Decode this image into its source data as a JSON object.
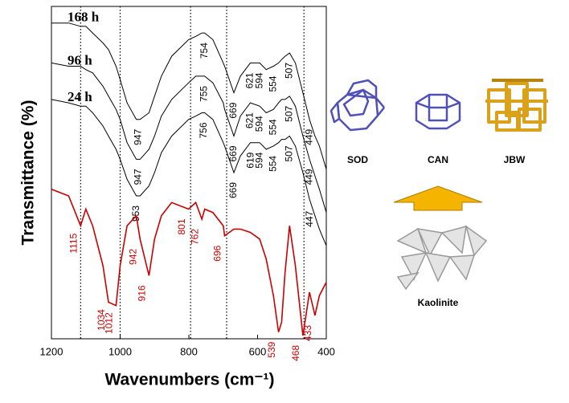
{
  "chart_data": {
    "type": "line",
    "x_label": "Wavenumbers (cm⁻¹)",
    "y_label": "Transmittance (%)",
    "xlim": [
      1200,
      400
    ],
    "xticks": [
      1200,
      1000,
      800,
      600,
      400
    ],
    "ylim": [
      0,
      100
    ],
    "reference_lines": [
      1115,
      1000,
      795,
      690,
      465
    ],
    "x": [
      1200,
      1150,
      1115,
      1100,
      1080,
      1050,
      1034,
      1012,
      1000,
      980,
      953,
      942,
      916,
      900,
      880,
      850,
      801,
      780,
      762,
      754,
      730,
      700,
      696,
      669,
      650,
      621,
      594,
      575,
      554,
      539,
      530,
      520,
      507,
      490,
      468,
      449,
      433,
      420,
      400
    ],
    "series": [
      {
        "name": "168 h",
        "color": "#000000",
        "values": [
          95,
          95,
          94,
          94,
          92,
          89,
          87,
          82,
          78,
          71,
          66,
          66,
          68,
          73,
          79,
          85,
          90,
          91,
          92,
          92,
          90,
          83,
          82,
          74,
          79,
          83,
          83,
          81,
          82,
          83,
          84,
          85,
          86,
          83,
          74,
          66,
          61,
          58,
          51
        ],
        "peaks": [
          947,
          754,
          669,
          621,
          594,
          554,
          507,
          449
        ]
      },
      {
        "name": "96 h",
        "color": "#000000",
        "values": [
          83,
          82,
          82,
          81,
          80,
          76,
          73,
          69,
          66,
          59,
          54,
          54,
          57,
          61,
          67,
          72,
          77,
          79,
          79,
          79,
          77,
          71,
          69,
          61,
          67,
          71,
          70,
          68,
          69,
          71,
          72,
          72,
          73,
          70,
          61,
          54,
          49,
          45,
          38
        ],
        "peaks": [
          947,
          755,
          669,
          621,
          594,
          554,
          507,
          449
        ]
      },
      {
        "name": "24 h",
        "color": "#000000",
        "values": [
          72,
          71,
          70,
          70,
          68,
          64,
          61,
          57,
          54,
          48,
          43,
          43,
          46,
          50,
          56,
          61,
          66,
          67,
          68,
          68,
          66,
          59,
          58,
          50,
          55,
          59,
          59,
          57,
          58,
          59,
          60,
          60,
          61,
          58,
          50,
          42,
          37,
          33,
          28
        ],
        "peaks": [
          953,
          756,
          669,
          619,
          594,
          554,
          507,
          447
        ]
      },
      {
        "color": "#cc0000",
        "values": [
          45,
          43,
          34,
          39,
          34,
          22,
          11,
          10,
          22,
          34,
          37,
          30,
          19,
          30,
          37,
          41,
          39,
          41,
          36,
          39,
          38,
          34,
          31,
          33,
          33,
          32,
          30,
          24,
          13,
          2,
          5,
          20,
          34,
          22,
          1,
          14,
          7,
          13,
          17
        ],
        "peaks": [
          1115,
          1034,
          1012,
          942,
          916,
          801,
          762,
          696,
          539,
          468,
          433
        ]
      }
    ]
  },
  "structures": {
    "labels": [
      "SOD",
      "CAN",
      "JBW"
    ],
    "precursor": "Kaolinite"
  }
}
